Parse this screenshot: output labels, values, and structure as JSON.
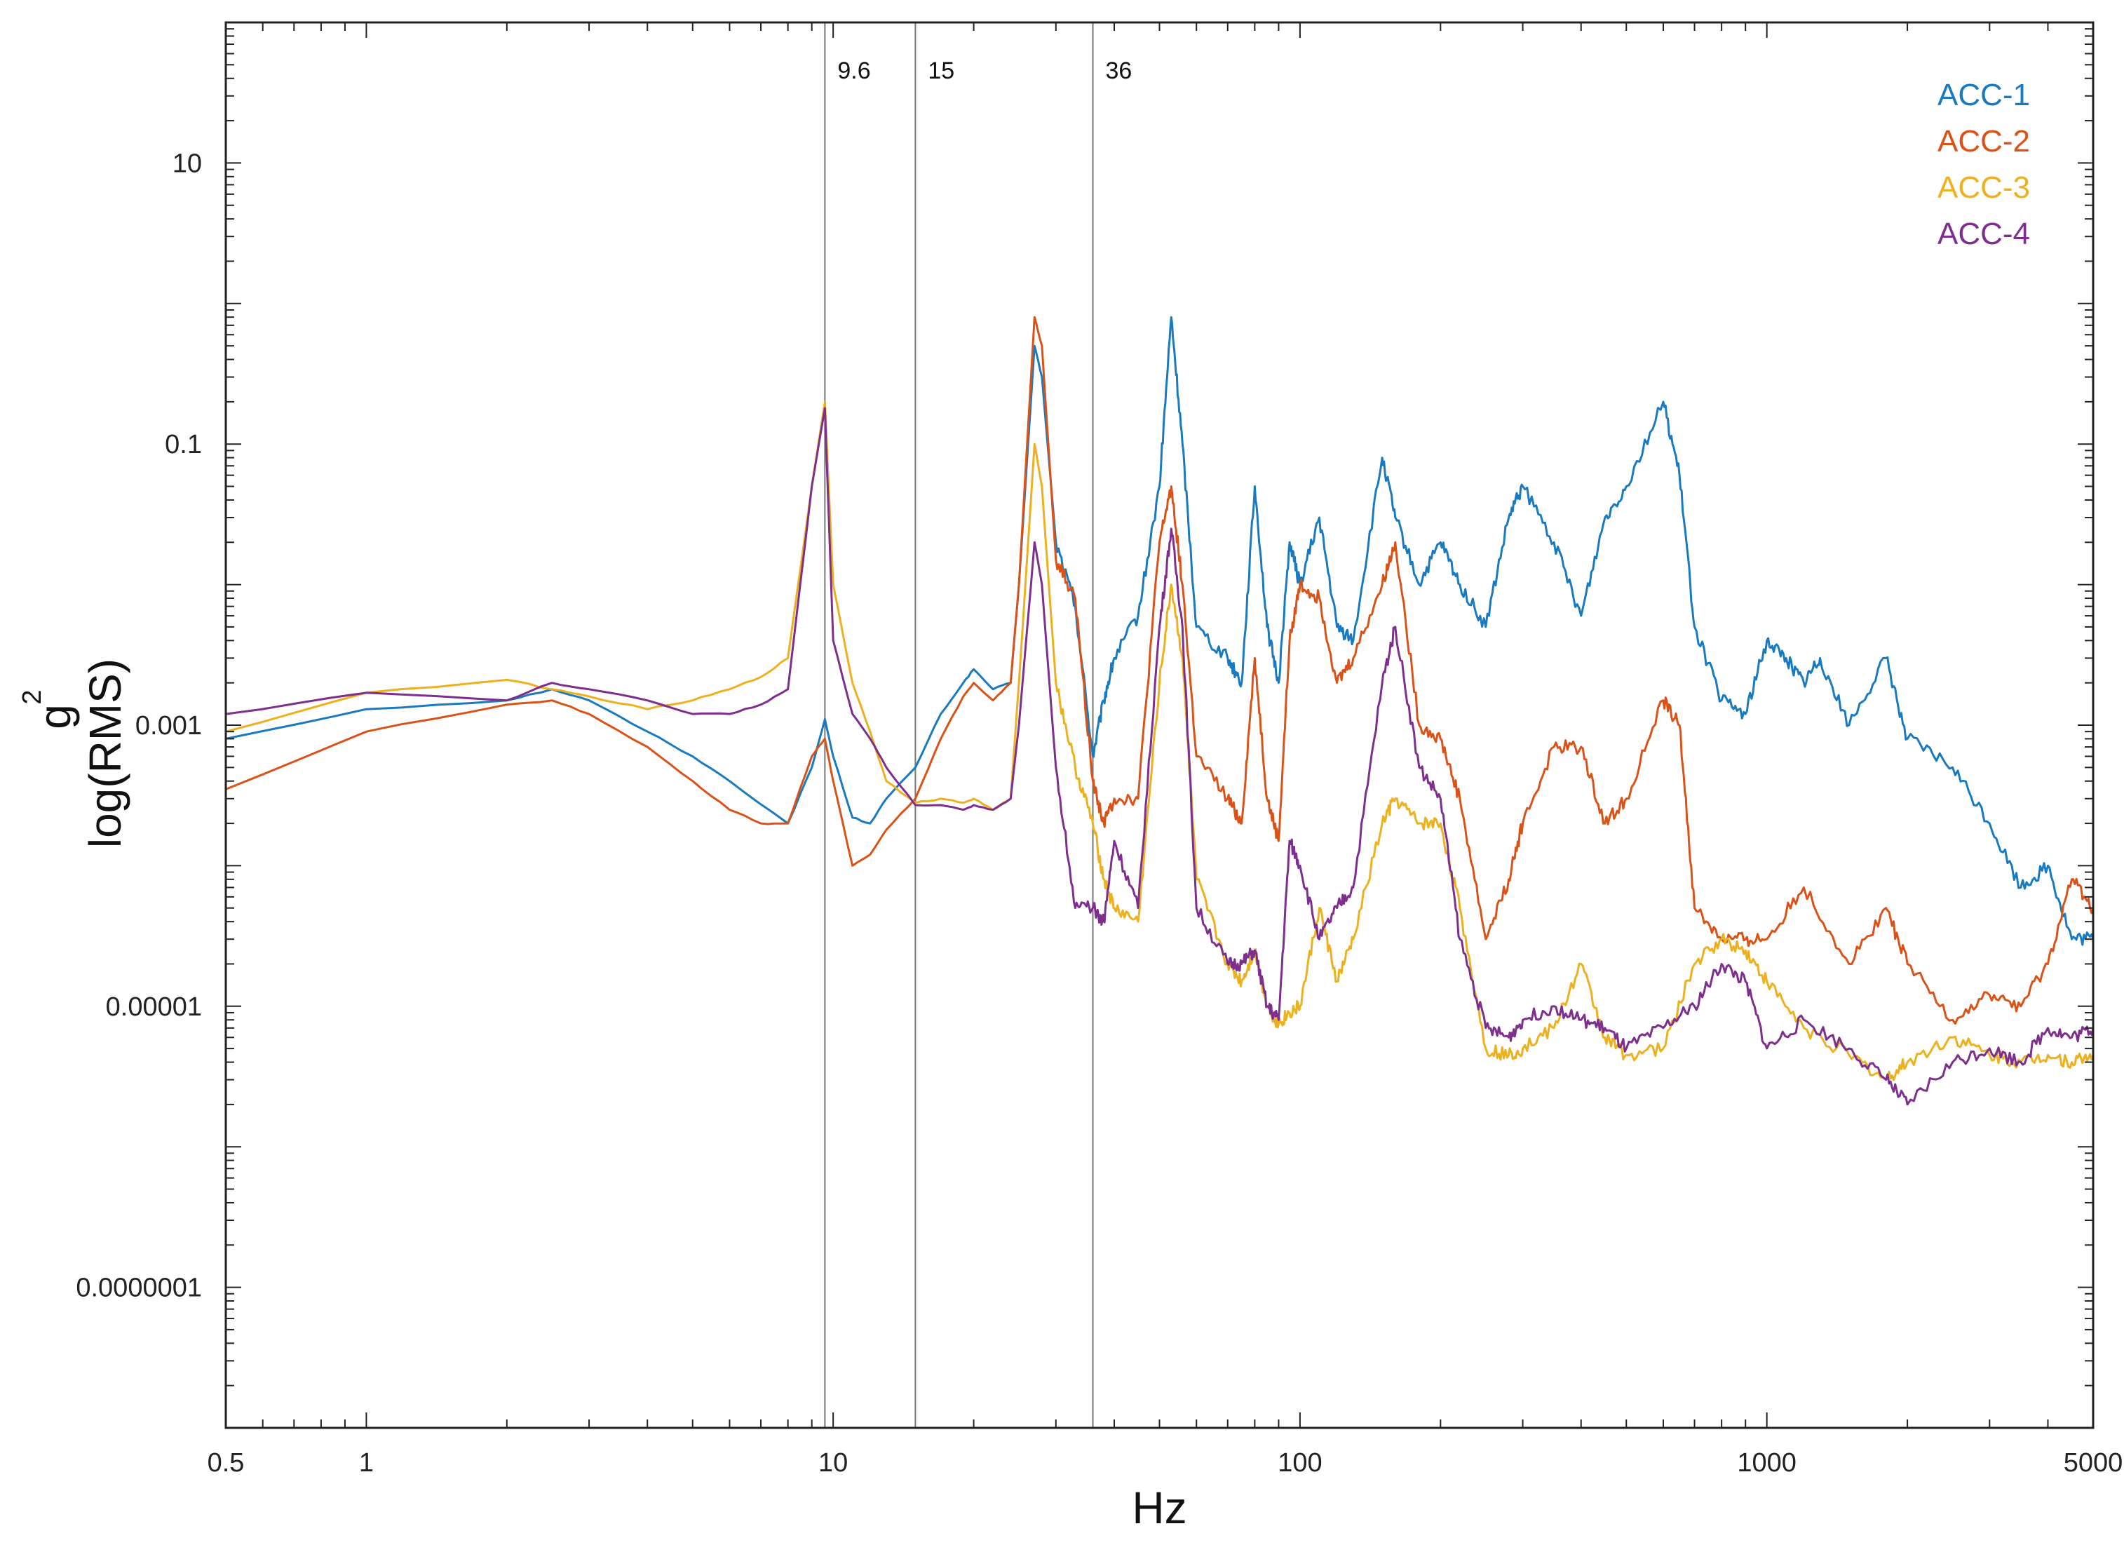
{
  "chart_data": {
    "type": "line",
    "title": "",
    "xlabel": "Hz",
    "ylabel_superscript": "2",
    "ylabel_base": "g",
    "ylabel": "log(RMS)",
    "x_scale": "log",
    "y_scale": "log",
    "xlim": [
      0.5,
      5000
    ],
    "ylim": [
      1e-08,
      100
    ],
    "x_ticks": [
      {
        "value": 0.5,
        "label": "0.5"
      },
      {
        "value": 1,
        "label": "1"
      },
      {
        "value": 10,
        "label": "10"
      },
      {
        "value": 100,
        "label": "100"
      },
      {
        "value": 1000,
        "label": "1000"
      },
      {
        "value": 5000,
        "label": "5000"
      }
    ],
    "y_ticks": [
      {
        "value": 10,
        "label": "10"
      },
      {
        "value": 0.1,
        "label": "0.1"
      },
      {
        "value": 0.001,
        "label": "0.001"
      },
      {
        "value": 1e-05,
        "label": "0.00001"
      },
      {
        "value": 1e-07,
        "label": "0.0000001"
      }
    ],
    "grid": false,
    "legend_position": "top-right",
    "vertical_lines": [
      {
        "x": 9.6,
        "label": "9.6"
      },
      {
        "x": 15,
        "label": "15"
      },
      {
        "x": 36,
        "label": "36"
      }
    ],
    "series": [
      {
        "name": "ACC-1",
        "color": "#1a7abf",
        "points": [
          [
            0.5,
            0.0008
          ],
          [
            1,
            0.0013
          ],
          [
            2,
            0.0015
          ],
          [
            2.5,
            0.0018
          ],
          [
            3,
            0.0015
          ],
          [
            4,
            0.0009
          ],
          [
            5,
            0.0006
          ],
          [
            6,
            0.0004
          ],
          [
            8,
            0.0002
          ],
          [
            9,
            0.0005
          ],
          [
            9.6,
            0.0011
          ],
          [
            10,
            0.0006
          ],
          [
            11,
            0.00022
          ],
          [
            12,
            0.0002
          ],
          [
            13,
            0.0003
          ],
          [
            15,
            0.0005
          ],
          [
            17,
            0.0012
          ],
          [
            19,
            0.002
          ],
          [
            20,
            0.0025
          ],
          [
            22,
            0.0018
          ],
          [
            24,
            0.002
          ],
          [
            25,
            0.01
          ],
          [
            27,
            0.5
          ],
          [
            28,
            0.3
          ],
          [
            30,
            0.02
          ],
          [
            33,
            0.007
          ],
          [
            36,
            0.0006
          ],
          [
            38,
            0.0015
          ],
          [
            40,
            0.003
          ],
          [
            45,
            0.006
          ],
          [
            50,
            0.05
          ],
          [
            53,
            0.8
          ],
          [
            56,
            0.1
          ],
          [
            60,
            0.005
          ],
          [
            70,
            0.003
          ],
          [
            75,
            0.002
          ],
          [
            80,
            0.05
          ],
          [
            85,
            0.005
          ],
          [
            90,
            0.002
          ],
          [
            95,
            0.02
          ],
          [
            100,
            0.01
          ],
          [
            110,
            0.03
          ],
          [
            120,
            0.005
          ],
          [
            130,
            0.004
          ],
          [
            150,
            0.08
          ],
          [
            160,
            0.03
          ],
          [
            180,
            0.01
          ],
          [
            200,
            0.02
          ],
          [
            220,
            0.01
          ],
          [
            250,
            0.005
          ],
          [
            280,
            0.03
          ],
          [
            300,
            0.05
          ],
          [
            350,
            0.02
          ],
          [
            400,
            0.006
          ],
          [
            450,
            0.03
          ],
          [
            500,
            0.05
          ],
          [
            600,
            0.2
          ],
          [
            650,
            0.06
          ],
          [
            700,
            0.005
          ],
          [
            800,
            0.0015
          ],
          [
            900,
            0.0012
          ],
          [
            1000,
            0.004
          ],
          [
            1100,
            0.003
          ],
          [
            1200,
            0.002
          ],
          [
            1300,
            0.003
          ],
          [
            1500,
            0.001
          ],
          [
            1800,
            0.003
          ],
          [
            2000,
            0.0008
          ],
          [
            2500,
            0.0005
          ],
          [
            3000,
            0.0002
          ],
          [
            3500,
            7e-05
          ],
          [
            4000,
            0.0001
          ],
          [
            4500,
            3e-05
          ],
          [
            5000,
            3e-05
          ]
        ]
      },
      {
        "name": "ACC-2",
        "color": "#d95319",
        "points": [
          [
            0.5,
            0.00035
          ],
          [
            1,
            0.0009
          ],
          [
            2,
            0.0014
          ],
          [
            2.5,
            0.0015
          ],
          [
            3,
            0.0012
          ],
          [
            4,
            0.0007
          ],
          [
            5,
            0.0004
          ],
          [
            6,
            0.00025
          ],
          [
            7,
            0.0002
          ],
          [
            8,
            0.0002
          ],
          [
            9,
            0.0006
          ],
          [
            9.6,
            0.0008
          ],
          [
            10,
            0.0004
          ],
          [
            11,
            0.0001
          ],
          [
            12,
            0.00012
          ],
          [
            13,
            0.00018
          ],
          [
            15,
            0.0003
          ],
          [
            17,
            0.0008
          ],
          [
            19,
            0.0016
          ],
          [
            20,
            0.002
          ],
          [
            22,
            0.0015
          ],
          [
            24,
            0.002
          ],
          [
            25,
            0.01
          ],
          [
            27,
            0.8
          ],
          [
            28,
            0.5
          ],
          [
            30,
            0.015
          ],
          [
            33,
            0.008
          ],
          [
            36,
            0.0004
          ],
          [
            38,
            0.0002
          ],
          [
            40,
            0.0003
          ],
          [
            45,
            0.0003
          ],
          [
            50,
            0.02
          ],
          [
            53,
            0.05
          ],
          [
            56,
            0.01
          ],
          [
            60,
            0.0006
          ],
          [
            70,
            0.0003
          ],
          [
            75,
            0.0002
          ],
          [
            80,
            0.003
          ],
          [
            85,
            0.0003
          ],
          [
            90,
            0.00015
          ],
          [
            95,
            0.004
          ],
          [
            100,
            0.01
          ],
          [
            110,
            0.008
          ],
          [
            120,
            0.002
          ],
          [
            130,
            0.003
          ],
          [
            150,
            0.01
          ],
          [
            160,
            0.02
          ],
          [
            180,
            0.001
          ],
          [
            200,
            0.0008
          ],
          [
            220,
            0.0003
          ],
          [
            250,
            3e-05
          ],
          [
            280,
            8e-05
          ],
          [
            300,
            0.0002
          ],
          [
            350,
            0.0007
          ],
          [
            400,
            0.0007
          ],
          [
            450,
            0.0002
          ],
          [
            500,
            0.0003
          ],
          [
            600,
            0.0015
          ],
          [
            650,
            0.001
          ],
          [
            700,
            5e-05
          ],
          [
            800,
            3e-05
          ],
          [
            900,
            3e-05
          ],
          [
            1000,
            3e-05
          ],
          [
            1200,
            7e-05
          ],
          [
            1500,
            2e-05
          ],
          [
            1800,
            5e-05
          ],
          [
            2000,
            2e-05
          ],
          [
            2500,
            8e-06
          ],
          [
            3000,
            1.2e-05
          ],
          [
            3500,
            1e-05
          ],
          [
            4000,
            2e-05
          ],
          [
            4500,
            8e-05
          ],
          [
            5000,
            5e-05
          ]
        ]
      },
      {
        "name": "ACC-3",
        "color": "#edb120",
        "points": [
          [
            0.5,
            0.0009
          ],
          [
            1,
            0.0017
          ],
          [
            2,
            0.0021
          ],
          [
            2.5,
            0.0018
          ],
          [
            3,
            0.0016
          ],
          [
            4,
            0.0013
          ],
          [
            5,
            0.0015
          ],
          [
            6,
            0.0018
          ],
          [
            7,
            0.0022
          ],
          [
            8,
            0.003
          ],
          [
            9,
            0.05
          ],
          [
            9.6,
            0.2
          ],
          [
            10,
            0.01
          ],
          [
            11,
            0.002
          ],
          [
            12,
            0.0009
          ],
          [
            13,
            0.0004
          ],
          [
            15,
            0.00028
          ],
          [
            17,
            0.0003
          ],
          [
            19,
            0.00028
          ],
          [
            20,
            0.0003
          ],
          [
            22,
            0.00025
          ],
          [
            24,
            0.0003
          ],
          [
            25,
            0.002
          ],
          [
            27,
            0.1
          ],
          [
            28,
            0.05
          ],
          [
            30,
            0.002
          ],
          [
            33,
            0.0005
          ],
          [
            36,
            0.0002
          ],
          [
            38,
            8e-05
          ],
          [
            40,
            5e-05
          ],
          [
            45,
            4e-05
          ],
          [
            50,
            0.002
          ],
          [
            53,
            0.01
          ],
          [
            56,
            0.003
          ],
          [
            60,
            8e-05
          ],
          [
            70,
            2e-05
          ],
          [
            75,
            1.5e-05
          ],
          [
            80,
            2.5e-05
          ],
          [
            85,
            1e-05
          ],
          [
            90,
            7.5e-06
          ],
          [
            95,
            9e-06
          ],
          [
            100,
            1e-05
          ],
          [
            110,
            5e-05
          ],
          [
            120,
            1.5e-05
          ],
          [
            130,
            3e-05
          ],
          [
            150,
            0.0002
          ],
          [
            160,
            0.0003
          ],
          [
            180,
            0.0002
          ],
          [
            200,
            0.0002
          ],
          [
            220,
            5e-05
          ],
          [
            250,
            5e-06
          ],
          [
            280,
            4.5e-06
          ],
          [
            300,
            5e-06
          ],
          [
            350,
            7e-06
          ],
          [
            400,
            2e-05
          ],
          [
            450,
            6e-06
          ],
          [
            500,
            4.5e-06
          ],
          [
            600,
            5e-06
          ],
          [
            700,
            2e-05
          ],
          [
            800,
            3e-05
          ],
          [
            900,
            2.5e-05
          ],
          [
            1000,
            1.5e-05
          ],
          [
            1200,
            7e-06
          ],
          [
            1500,
            4.5e-06
          ],
          [
            1800,
            3e-06
          ],
          [
            2000,
            4e-06
          ],
          [
            2500,
            6e-06
          ],
          [
            3000,
            4.5e-06
          ],
          [
            3500,
            4e-06
          ],
          [
            4000,
            4.5e-06
          ],
          [
            4500,
            4e-06
          ],
          [
            5000,
            4.5e-06
          ]
        ]
      },
      {
        "name": "ACC-4",
        "color": "#7e2f8e",
        "points": [
          [
            0.5,
            0.0012
          ],
          [
            1,
            0.0017
          ],
          [
            2,
            0.0015
          ],
          [
            2.5,
            0.002
          ],
          [
            3,
            0.0018
          ],
          [
            4,
            0.0015
          ],
          [
            5,
            0.0012
          ],
          [
            6,
            0.0012
          ],
          [
            7,
            0.0014
          ],
          [
            8,
            0.0018
          ],
          [
            9,
            0.05
          ],
          [
            9.6,
            0.18
          ],
          [
            10,
            0.004
          ],
          [
            11,
            0.0012
          ],
          [
            12,
            0.0008
          ],
          [
            13,
            0.0005
          ],
          [
            15,
            0.00027
          ],
          [
            17,
            0.00027
          ],
          [
            19,
            0.00025
          ],
          [
            20,
            0.00027
          ],
          [
            22,
            0.00025
          ],
          [
            24,
            0.0003
          ],
          [
            25,
            0.001
          ],
          [
            27,
            0.02
          ],
          [
            28,
            0.01
          ],
          [
            30,
            0.0005
          ],
          [
            33,
            5e-05
          ],
          [
            36,
            5e-05
          ],
          [
            38,
            4e-05
          ],
          [
            40,
            0.00015
          ],
          [
            45,
            5e-05
          ],
          [
            50,
            0.005
          ],
          [
            53,
            0.025
          ],
          [
            56,
            0.005
          ],
          [
            60,
            5e-05
          ],
          [
            70,
            2e-05
          ],
          [
            75,
            2e-05
          ],
          [
            80,
            2.5e-05
          ],
          [
            85,
            1e-05
          ],
          [
            90,
            8e-06
          ],
          [
            95,
            0.00015
          ],
          [
            100,
            0.0001
          ],
          [
            110,
            3e-05
          ],
          [
            120,
            5e-05
          ],
          [
            130,
            7e-05
          ],
          [
            150,
            0.002
          ],
          [
            160,
            0.005
          ],
          [
            180,
            0.0005
          ],
          [
            200,
            0.0003
          ],
          [
            220,
            3e-05
          ],
          [
            250,
            7e-06
          ],
          [
            280,
            6e-06
          ],
          [
            300,
            8e-06
          ],
          [
            350,
            1e-05
          ],
          [
            400,
            8e-06
          ],
          [
            450,
            7e-06
          ],
          [
            500,
            5e-06
          ],
          [
            600,
            7e-06
          ],
          [
            700,
            1e-05
          ],
          [
            800,
            2e-05
          ],
          [
            900,
            1.5e-05
          ],
          [
            1000,
            5e-06
          ],
          [
            1200,
            8e-06
          ],
          [
            1500,
            5e-06
          ],
          [
            1800,
            3e-06
          ],
          [
            2000,
            2e-06
          ],
          [
            2500,
            4e-06
          ],
          [
            3000,
            5e-06
          ],
          [
            3500,
            4e-06
          ],
          [
            4000,
            7e-06
          ],
          [
            4500,
            6e-06
          ],
          [
            5000,
            7e-06
          ]
        ]
      }
    ]
  }
}
